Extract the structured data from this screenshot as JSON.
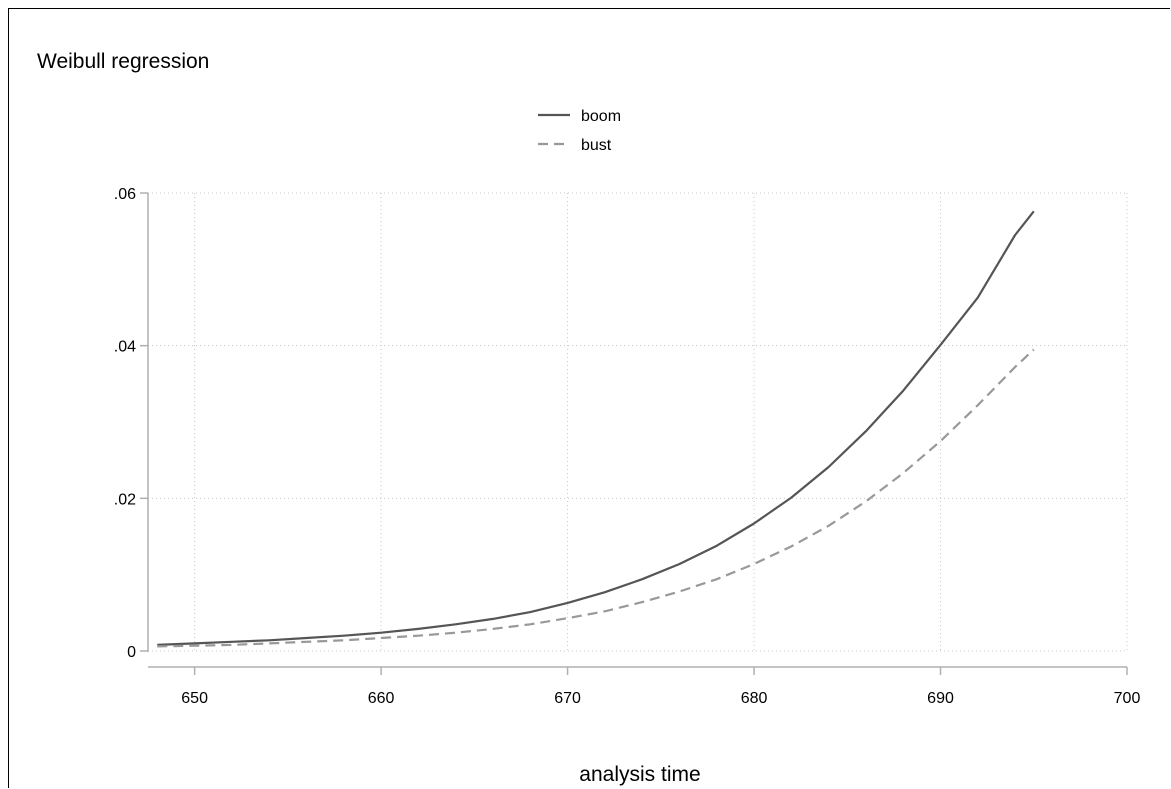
{
  "chart_data": {
    "type": "line",
    "title": "Weibull regression",
    "xlabel": "analysis time",
    "ylabel": "",
    "xlim": [
      647.5,
      700
    ],
    "ylim": [
      0,
      0.06
    ],
    "x_ticks": [
      650,
      660,
      670,
      680,
      690,
      700
    ],
    "x_tick_labels": [
      "650",
      "660",
      "670",
      "680",
      "690",
      "700"
    ],
    "y_ticks": [
      0,
      0.02,
      0.04,
      0.06
    ],
    "y_tick_labels": [
      "0",
      ".02",
      ".04",
      ".06"
    ],
    "grid": true,
    "legend": "top-center",
    "x": [
      648,
      650,
      652,
      654,
      656,
      658,
      660,
      662,
      664,
      666,
      668,
      670,
      672,
      674,
      676,
      678,
      680,
      682,
      684,
      686,
      688,
      690,
      692,
      694,
      695
    ],
    "series": [
      {
        "name": "boom",
        "color": "#555555",
        "style": "solid",
        "values": [
          0.0008,
          0.001,
          0.0012,
          0.0014,
          0.0017,
          0.002,
          0.0024,
          0.0029,
          0.0035,
          0.0042,
          0.0051,
          0.0063,
          0.0077,
          0.0094,
          0.0114,
          0.0138,
          0.0167,
          0.0201,
          0.0241,
          0.0288,
          0.0341,
          0.0401,
          0.0463,
          0.0545,
          0.0576
        ]
      },
      {
        "name": "bust",
        "color": "#999999",
        "style": "dashed",
        "values": [
          0.0006,
          0.0007,
          0.0008,
          0.001,
          0.0012,
          0.0014,
          0.0017,
          0.002,
          0.0024,
          0.0029,
          0.0035,
          0.0043,
          0.0052,
          0.0064,
          0.0078,
          0.0094,
          0.0114,
          0.0137,
          0.0164,
          0.0196,
          0.0233,
          0.0275,
          0.0322,
          0.0372,
          0.0395
        ]
      }
    ]
  }
}
